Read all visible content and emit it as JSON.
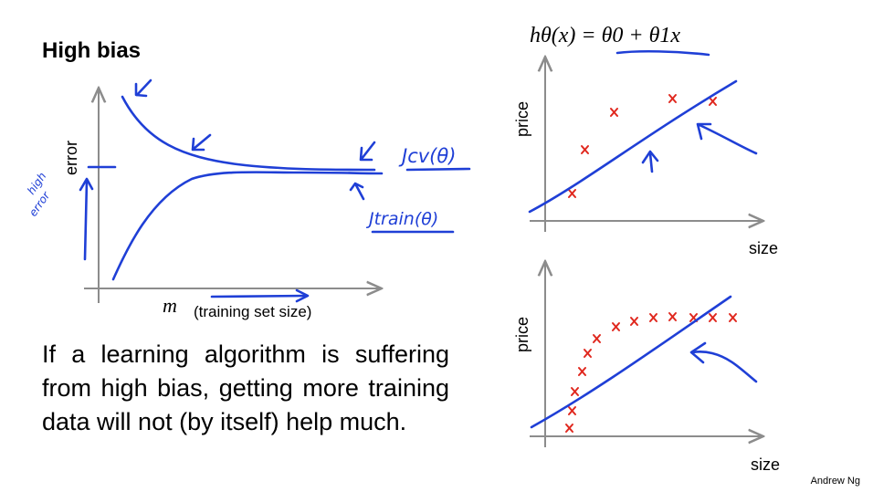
{
  "slide": {
    "title": "High bias",
    "body": "If a learning algorithm is suffering from high bias, getting more training data will not (by itself) help much.",
    "author": "Andrew Ng",
    "formula": "hθ(x) = θ0 + θ1x"
  },
  "learning_curve": {
    "ylabel": "error",
    "xlabel_var": "m",
    "xlabel": "(training set size)",
    "cv_label": "Jcv(θ)",
    "train_label": "Jtrain(θ)",
    "annotation": [
      "high",
      "error"
    ]
  },
  "plot_top": {
    "xlabel": "size",
    "ylabel": "price"
  },
  "plot_bottom": {
    "xlabel": "size",
    "ylabel": "price"
  },
  "colors": {
    "ink": "#1f3fd6",
    "points": "#e0281e",
    "axes": "#8c8c8c",
    "text": "#000000"
  }
}
